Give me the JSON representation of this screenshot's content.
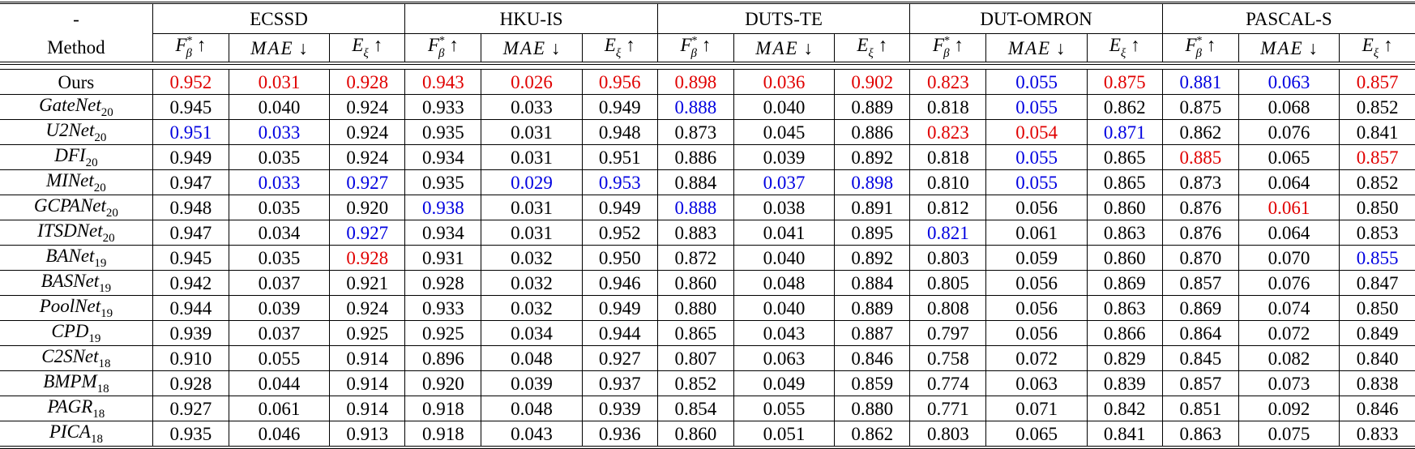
{
  "header": {
    "corner": "-",
    "method_label": "Method",
    "datasets": [
      "ECSSD",
      "HKU-IS",
      "DUTS-TE",
      "DUT-OMRON",
      "PASCAL-S"
    ],
    "metrics": [
      {
        "base": "F",
        "sup": "*",
        "sub": "β",
        "arrow": "↑"
      },
      {
        "base": "MAE",
        "sup": "",
        "sub": "",
        "arrow": "↓"
      },
      {
        "base": "E",
        "sup": "",
        "sub": "ξ",
        "arrow": "↑"
      }
    ]
  },
  "colors": {
    "r": "#e00000",
    "b": "#0000e0"
  },
  "legend_meaning": {
    "r": "best",
    "b": "second best"
  },
  "rows": [
    {
      "name": "Ours",
      "sub": "",
      "italic": false,
      "cells": [
        [
          "0.952",
          "r"
        ],
        [
          "0.031",
          "r"
        ],
        [
          "0.928",
          "r"
        ],
        [
          "0.943",
          "r"
        ],
        [
          "0.026",
          "r"
        ],
        [
          "0.956",
          "r"
        ],
        [
          "0.898",
          "r"
        ],
        [
          "0.036",
          "r"
        ],
        [
          "0.902",
          "r"
        ],
        [
          "0.823",
          "r"
        ],
        [
          "0.055",
          "b"
        ],
        [
          "0.875",
          "r"
        ],
        [
          "0.881",
          "b"
        ],
        [
          "0.063",
          "b"
        ],
        [
          "0.857",
          "r"
        ]
      ]
    },
    {
      "name": "GateNet",
      "sub": "20",
      "italic": true,
      "cells": [
        [
          "0.945",
          ""
        ],
        [
          "0.040",
          ""
        ],
        [
          "0.924",
          ""
        ],
        [
          "0.933",
          ""
        ],
        [
          "0.033",
          ""
        ],
        [
          "0.949",
          ""
        ],
        [
          "0.888",
          "b"
        ],
        [
          "0.040",
          ""
        ],
        [
          "0.889",
          ""
        ],
        [
          "0.818",
          ""
        ],
        [
          "0.055",
          "b"
        ],
        [
          "0.862",
          ""
        ],
        [
          "0.875",
          ""
        ],
        [
          "0.068",
          ""
        ],
        [
          "0.852",
          ""
        ]
      ]
    },
    {
      "name": "U2Net",
      "sub": "20",
      "italic": true,
      "cells": [
        [
          "0.951",
          "b"
        ],
        [
          "0.033",
          "b"
        ],
        [
          "0.924",
          ""
        ],
        [
          "0.935",
          ""
        ],
        [
          "0.031",
          ""
        ],
        [
          "0.948",
          ""
        ],
        [
          "0.873",
          ""
        ],
        [
          "0.045",
          ""
        ],
        [
          "0.886",
          ""
        ],
        [
          "0.823",
          "r"
        ],
        [
          "0.054",
          "r"
        ],
        [
          "0.871",
          "b"
        ],
        [
          "0.862",
          ""
        ],
        [
          "0.076",
          ""
        ],
        [
          "0.841",
          ""
        ]
      ]
    },
    {
      "name": "DFI",
      "sub": "20",
      "italic": true,
      "cells": [
        [
          "0.949",
          ""
        ],
        [
          "0.035",
          ""
        ],
        [
          "0.924",
          ""
        ],
        [
          "0.934",
          ""
        ],
        [
          "0.031",
          ""
        ],
        [
          "0.951",
          ""
        ],
        [
          "0.886",
          ""
        ],
        [
          "0.039",
          ""
        ],
        [
          "0.892",
          ""
        ],
        [
          "0.818",
          ""
        ],
        [
          "0.055",
          "b"
        ],
        [
          "0.865",
          ""
        ],
        [
          "0.885",
          "r"
        ],
        [
          "0.065",
          ""
        ],
        [
          "0.857",
          "r"
        ]
      ]
    },
    {
      "name": "MINet",
      "sub": "20",
      "italic": true,
      "cells": [
        [
          "0.947",
          ""
        ],
        [
          "0.033",
          "b"
        ],
        [
          "0.927",
          "b"
        ],
        [
          "0.935",
          ""
        ],
        [
          "0.029",
          "b"
        ],
        [
          "0.953",
          "b"
        ],
        [
          "0.884",
          ""
        ],
        [
          "0.037",
          "b"
        ],
        [
          "0.898",
          "b"
        ],
        [
          "0.810",
          ""
        ],
        [
          "0.055",
          "b"
        ],
        [
          "0.865",
          ""
        ],
        [
          "0.873",
          ""
        ],
        [
          "0.064",
          ""
        ],
        [
          "0.852",
          ""
        ]
      ]
    },
    {
      "name": "GCPANet",
      "sub": "20",
      "italic": true,
      "cells": [
        [
          "0.948",
          ""
        ],
        [
          "0.035",
          ""
        ],
        [
          "0.920",
          ""
        ],
        [
          "0.938",
          "b"
        ],
        [
          "0.031",
          ""
        ],
        [
          "0.949",
          ""
        ],
        [
          "0.888",
          "b"
        ],
        [
          "0.038",
          ""
        ],
        [
          "0.891",
          ""
        ],
        [
          "0.812",
          ""
        ],
        [
          "0.056",
          ""
        ],
        [
          "0.860",
          ""
        ],
        [
          "0.876",
          ""
        ],
        [
          "0.061",
          "r"
        ],
        [
          "0.850",
          ""
        ]
      ]
    },
    {
      "name": "ITSDNet",
      "sub": "20",
      "italic": true,
      "cells": [
        [
          "0.947",
          ""
        ],
        [
          "0.034",
          ""
        ],
        [
          "0.927",
          "b"
        ],
        [
          "0.934",
          ""
        ],
        [
          "0.031",
          ""
        ],
        [
          "0.952",
          ""
        ],
        [
          "0.883",
          ""
        ],
        [
          "0.041",
          ""
        ],
        [
          "0.895",
          ""
        ],
        [
          "0.821",
          "b"
        ],
        [
          "0.061",
          ""
        ],
        [
          "0.863",
          ""
        ],
        [
          "0.876",
          ""
        ],
        [
          "0.064",
          ""
        ],
        [
          "0.853",
          ""
        ]
      ]
    },
    {
      "name": "BANet",
      "sub": "19",
      "italic": true,
      "cells": [
        [
          "0.945",
          ""
        ],
        [
          "0.035",
          ""
        ],
        [
          "0.928",
          "r"
        ],
        [
          "0.931",
          ""
        ],
        [
          "0.032",
          ""
        ],
        [
          "0.950",
          ""
        ],
        [
          "0.872",
          ""
        ],
        [
          "0.040",
          ""
        ],
        [
          "0.892",
          ""
        ],
        [
          "0.803",
          ""
        ],
        [
          "0.059",
          ""
        ],
        [
          "0.860",
          ""
        ],
        [
          "0.870",
          ""
        ],
        [
          "0.070",
          ""
        ],
        [
          "0.855",
          "b"
        ]
      ]
    },
    {
      "name": "BASNet",
      "sub": "19",
      "italic": true,
      "cells": [
        [
          "0.942",
          ""
        ],
        [
          "0.037",
          ""
        ],
        [
          "0.921",
          ""
        ],
        [
          "0.928",
          ""
        ],
        [
          "0.032",
          ""
        ],
        [
          "0.946",
          ""
        ],
        [
          "0.860",
          ""
        ],
        [
          "0.048",
          ""
        ],
        [
          "0.884",
          ""
        ],
        [
          "0.805",
          ""
        ],
        [
          "0.056",
          ""
        ],
        [
          "0.869",
          ""
        ],
        [
          "0.857",
          ""
        ],
        [
          "0.076",
          ""
        ],
        [
          "0.847",
          ""
        ]
      ]
    },
    {
      "name": "PoolNet",
      "sub": "19",
      "italic": true,
      "cells": [
        [
          "0.944",
          ""
        ],
        [
          "0.039",
          ""
        ],
        [
          "0.924",
          ""
        ],
        [
          "0.933",
          ""
        ],
        [
          "0.032",
          ""
        ],
        [
          "0.949",
          ""
        ],
        [
          "0.880",
          ""
        ],
        [
          "0.040",
          ""
        ],
        [
          "0.889",
          ""
        ],
        [
          "0.808",
          ""
        ],
        [
          "0.056",
          ""
        ],
        [
          "0.863",
          ""
        ],
        [
          "0.869",
          ""
        ],
        [
          "0.074",
          ""
        ],
        [
          "0.850",
          ""
        ]
      ]
    },
    {
      "name": "CPD",
      "sub": "19",
      "italic": true,
      "cells": [
        [
          "0.939",
          ""
        ],
        [
          "0.037",
          ""
        ],
        [
          "0.925",
          ""
        ],
        [
          "0.925",
          ""
        ],
        [
          "0.034",
          ""
        ],
        [
          "0.944",
          ""
        ],
        [
          "0.865",
          ""
        ],
        [
          "0.043",
          ""
        ],
        [
          "0.887",
          ""
        ],
        [
          "0.797",
          ""
        ],
        [
          "0.056",
          ""
        ],
        [
          "0.866",
          ""
        ],
        [
          "0.864",
          ""
        ],
        [
          "0.072",
          ""
        ],
        [
          "0.849",
          ""
        ]
      ]
    },
    {
      "name": "C2SNet",
      "sub": "18",
      "italic": true,
      "cells": [
        [
          "0.910",
          ""
        ],
        [
          "0.055",
          ""
        ],
        [
          "0.914",
          ""
        ],
        [
          "0.896",
          ""
        ],
        [
          "0.048",
          ""
        ],
        [
          "0.927",
          ""
        ],
        [
          "0.807",
          ""
        ],
        [
          "0.063",
          ""
        ],
        [
          "0.846",
          ""
        ],
        [
          "0.758",
          ""
        ],
        [
          "0.072",
          ""
        ],
        [
          "0.829",
          ""
        ],
        [
          "0.845",
          ""
        ],
        [
          "0.082",
          ""
        ],
        [
          "0.840",
          ""
        ]
      ]
    },
    {
      "name": "BMPM",
      "sub": "18",
      "italic": true,
      "cells": [
        [
          "0.928",
          ""
        ],
        [
          "0.044",
          ""
        ],
        [
          "0.914",
          ""
        ],
        [
          "0.920",
          ""
        ],
        [
          "0.039",
          ""
        ],
        [
          "0.937",
          ""
        ],
        [
          "0.852",
          ""
        ],
        [
          "0.049",
          ""
        ],
        [
          "0.859",
          ""
        ],
        [
          "0.774",
          ""
        ],
        [
          "0.063",
          ""
        ],
        [
          "0.839",
          ""
        ],
        [
          "0.857",
          ""
        ],
        [
          "0.073",
          ""
        ],
        [
          "0.838",
          ""
        ]
      ]
    },
    {
      "name": "PAGR",
      "sub": "18",
      "italic": true,
      "cells": [
        [
          "0.927",
          ""
        ],
        [
          "0.061",
          ""
        ],
        [
          "0.914",
          ""
        ],
        [
          "0.918",
          ""
        ],
        [
          "0.048",
          ""
        ],
        [
          "0.939",
          ""
        ],
        [
          "0.854",
          ""
        ],
        [
          "0.055",
          ""
        ],
        [
          "0.880",
          ""
        ],
        [
          "0.771",
          ""
        ],
        [
          "0.071",
          ""
        ],
        [
          "0.842",
          ""
        ],
        [
          "0.851",
          ""
        ],
        [
          "0.092",
          ""
        ],
        [
          "0.846",
          ""
        ]
      ]
    },
    {
      "name": "PICA",
      "sub": "18",
      "italic": true,
      "cells": [
        [
          "0.935",
          ""
        ],
        [
          "0.046",
          ""
        ],
        [
          "0.913",
          ""
        ],
        [
          "0.918",
          ""
        ],
        [
          "0.043",
          ""
        ],
        [
          "0.936",
          ""
        ],
        [
          "0.860",
          ""
        ],
        [
          "0.051",
          ""
        ],
        [
          "0.862",
          ""
        ],
        [
          "0.803",
          ""
        ],
        [
          "0.065",
          ""
        ],
        [
          "0.841",
          ""
        ],
        [
          "0.863",
          ""
        ],
        [
          "0.075",
          ""
        ],
        [
          "0.833",
          ""
        ]
      ]
    }
  ]
}
